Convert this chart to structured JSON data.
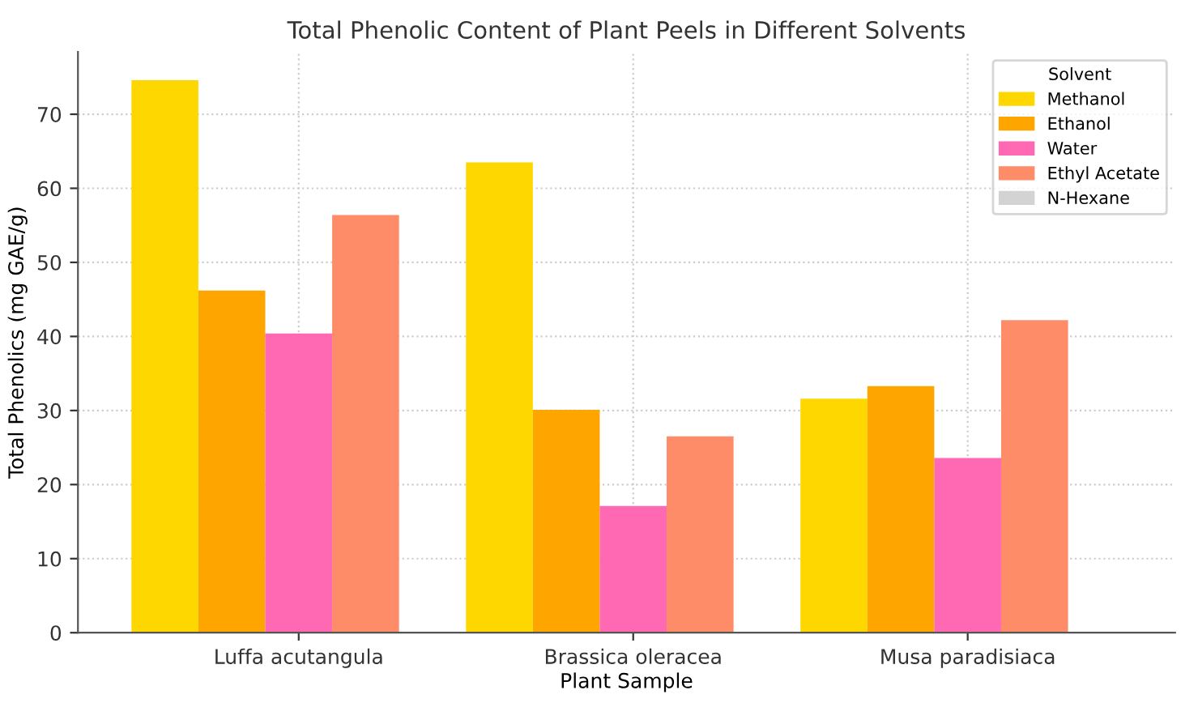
{
  "chart_data": {
    "type": "bar",
    "title": "Total Phenolic Content of Plant Peels in Different Solvents",
    "xlabel": "Plant Sample",
    "ylabel": "Total Phenolics (mg GAE/g)",
    "legend_title": "Solvent",
    "categories": [
      "Luffa acutangula",
      "Brassica oleracea",
      "Musa paradisiaca"
    ],
    "series": [
      {
        "name": "Methanol",
        "color": "#ffd700",
        "values": [
          74.6,
          63.5,
          31.6
        ]
      },
      {
        "name": "Ethanol",
        "color": "#ffa500",
        "values": [
          46.2,
          30.1,
          33.3
        ]
      },
      {
        "name": "Water",
        "color": "#ff69b4",
        "values": [
          40.4,
          17.1,
          23.6
        ]
      },
      {
        "name": "Ethyl Acetate",
        "color": "#ff8c69",
        "values": [
          56.4,
          26.5,
          42.2
        ]
      },
      {
        "name": "N-Hexane",
        "color": "#d3d3d3",
        "values": [
          0,
          0,
          0
        ]
      }
    ],
    "ylim": [
      0,
      78.4
    ],
    "yticks": [
      0,
      10,
      20,
      30,
      40,
      50,
      60,
      70
    ],
    "grid": true,
    "legend": "top right"
  }
}
